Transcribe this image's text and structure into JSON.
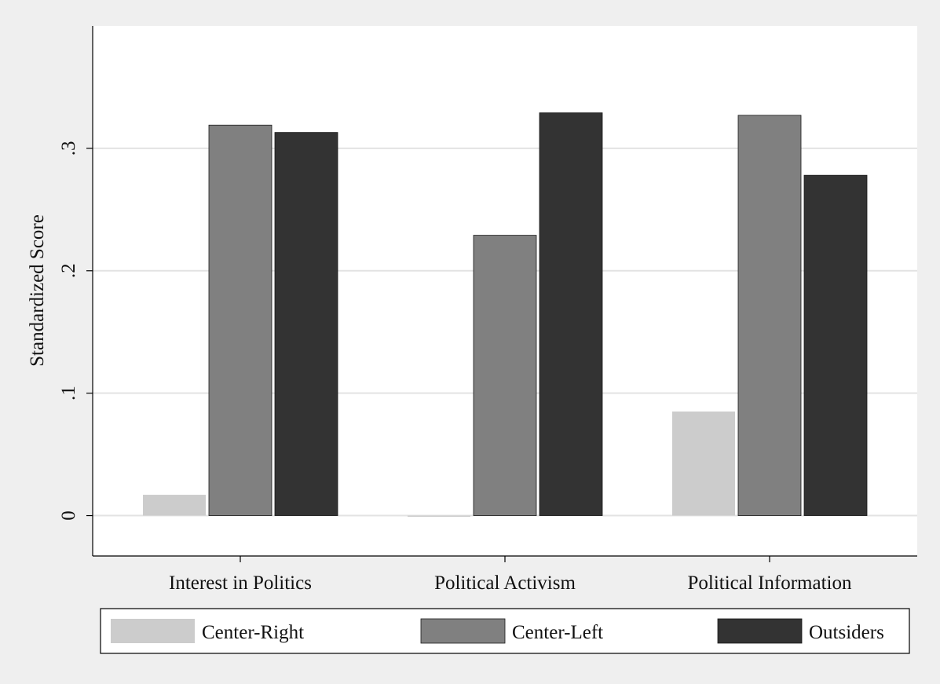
{
  "chart_data": {
    "type": "bar",
    "title": "",
    "xlabel": "",
    "ylabel": "Standardized Score",
    "categories": [
      "Interest in Politics",
      "Political Activism",
      "Political Information"
    ],
    "series": [
      {
        "name": "Center-Right",
        "values": [
          0.017,
          -0.001,
          0.085
        ],
        "color": "#cccccc"
      },
      {
        "name": "Center-Left",
        "values": [
          0.319,
          0.229,
          0.327
        ],
        "color": "#808080"
      },
      {
        "name": "Outsiders",
        "values": [
          0.313,
          0.329,
          0.278
        ],
        "color": "#333333"
      }
    ],
    "ylim": [
      -0.033,
      0.4
    ],
    "yticks": [
      0,
      0.1,
      0.2,
      0.3
    ],
    "ytick_labels": [
      "0",
      ".1",
      ".2",
      ".3"
    ],
    "grid": true,
    "legend_position": "bottom"
  },
  "colors": {
    "page_background": "#efefef",
    "plot_background": "#ffffff",
    "gridline": "#e3e3e3",
    "axis": "#000000"
  }
}
